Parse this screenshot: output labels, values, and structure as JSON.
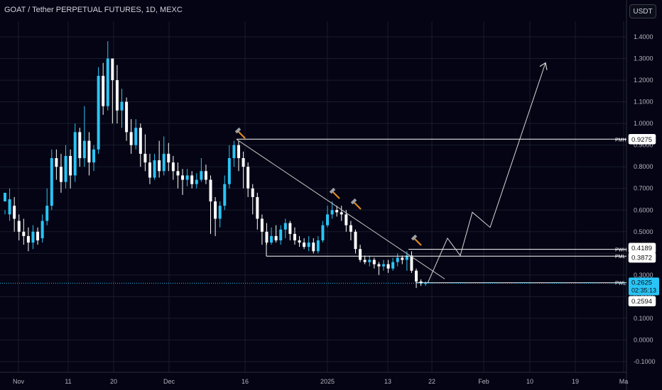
{
  "header": {
    "title": "GOAT / Tether PERPETUAL FUTURES, 1D, MEXC",
    "currency": "USDT"
  },
  "chart_data": {
    "type": "candlestick",
    "title": "GOAT / Tether PERPETUAL FUTURES, 1D, MEXC",
    "y_ticks": [
      "1.4000",
      "1.3000",
      "1.2000",
      "1.1000",
      "1.0000",
      "0.9000",
      "0.8000",
      "0.7000",
      "0.6000",
      "0.5000",
      "0.4000",
      "0.3000",
      "0.2000",
      "0.1000",
      "0.0000",
      "-0.1000"
    ],
    "ylim": [
      -0.13,
      1.45
    ],
    "x_ticks": [
      "Nov",
      "11",
      "20",
      "Dec",
      "16",
      "2025",
      "13",
      "22",
      "Feb",
      "10",
      "19",
      "Ma"
    ],
    "candles": [
      [
        0.64,
        0.68,
        0.6,
        0.58
      ],
      [
        0.58,
        0.65,
        0.7,
        0.55
      ],
      [
        0.62,
        0.56,
        0.66,
        0.5
      ],
      [
        0.55,
        0.5,
        0.58,
        0.46
      ],
      [
        0.5,
        0.48,
        0.56,
        0.44
      ],
      [
        0.48,
        0.45,
        0.52,
        0.41
      ],
      [
        0.45,
        0.5,
        0.53,
        0.42
      ],
      [
        0.5,
        0.46,
        0.52,
        0.44
      ],
      [
        0.47,
        0.55,
        0.58,
        0.45
      ],
      [
        0.55,
        0.62,
        0.7,
        0.53
      ],
      [
        0.62,
        0.84,
        0.88,
        0.6
      ],
      [
        0.84,
        0.8,
        0.88,
        0.74
      ],
      [
        0.8,
        0.73,
        0.86,
        0.68
      ],
      [
        0.73,
        0.85,
        0.9,
        0.7
      ],
      [
        0.85,
        0.76,
        0.88,
        0.7
      ],
      [
        0.76,
        0.96,
        1.0,
        0.73
      ],
      [
        0.96,
        0.84,
        0.98,
        0.8
      ],
      [
        0.84,
        0.92,
        1.08,
        0.8
      ],
      [
        0.92,
        0.82,
        0.96,
        0.76
      ],
      [
        0.82,
        0.88,
        0.9,
        0.78
      ],
      [
        0.88,
        1.22,
        1.26,
        0.86
      ],
      [
        1.22,
        1.08,
        1.28,
        1.04
      ],
      [
        1.08,
        1.3,
        1.38,
        1.06
      ],
      [
        1.3,
        1.2,
        1.25,
        1.0
      ],
      [
        1.2,
        1.06,
        1.27,
        1.0
      ],
      [
        1.06,
        1.1,
        1.16,
        0.98
      ],
      [
        1.1,
        0.96,
        1.12,
        0.92
      ],
      [
        0.96,
        0.9,
        1.02,
        0.86
      ],
      [
        0.9,
        0.98,
        1.02,
        0.88
      ],
      [
        0.98,
        0.86,
        1.0,
        0.8
      ],
      [
        0.86,
        0.82,
        0.95,
        0.78
      ],
      [
        0.82,
        0.75,
        0.86,
        0.72
      ],
      [
        0.75,
        0.83,
        0.86,
        0.74
      ],
      [
        0.83,
        0.78,
        0.92,
        0.75
      ],
      [
        0.78,
        0.86,
        0.94,
        0.76
      ],
      [
        0.86,
        0.82,
        0.91,
        0.78
      ],
      [
        0.82,
        0.78,
        0.85,
        0.74
      ],
      [
        0.78,
        0.76,
        0.82,
        0.7
      ],
      [
        0.76,
        0.74,
        0.79,
        0.67
      ],
      [
        0.74,
        0.76,
        0.79,
        0.71
      ],
      [
        0.76,
        0.72,
        0.78,
        0.7
      ],
      [
        0.72,
        0.74,
        0.77,
        0.7
      ],
      [
        0.74,
        0.78,
        0.84,
        0.73
      ],
      [
        0.78,
        0.74,
        0.81,
        0.72
      ],
      [
        0.74,
        0.64,
        0.76,
        0.49
      ],
      [
        0.64,
        0.56,
        0.66,
        0.48
      ],
      [
        0.56,
        0.62,
        0.64,
        0.52
      ],
      [
        0.62,
        0.72,
        0.76,
        0.6
      ],
      [
        0.72,
        0.84,
        0.9,
        0.7
      ],
      [
        0.84,
        0.9,
        0.92,
        0.8
      ],
      [
        0.9,
        0.84,
        0.92,
        0.78
      ],
      [
        0.84,
        0.8,
        0.87,
        0.7
      ],
      [
        0.8,
        0.7,
        0.82,
        0.66
      ],
      [
        0.7,
        0.66,
        0.72,
        0.58
      ],
      [
        0.66,
        0.56,
        0.68,
        0.51
      ],
      [
        0.56,
        0.5,
        0.58,
        0.44
      ],
      [
        0.5,
        0.45,
        0.54,
        0.44
      ],
      [
        0.45,
        0.48,
        0.52,
        0.44
      ],
      [
        0.48,
        0.46,
        0.53,
        0.45
      ],
      [
        0.46,
        0.51,
        0.53,
        0.44
      ],
      [
        0.51,
        0.54,
        0.56,
        0.47
      ],
      [
        0.54,
        0.49,
        0.55,
        0.46
      ],
      [
        0.49,
        0.46,
        0.52,
        0.44
      ],
      [
        0.46,
        0.45,
        0.48,
        0.43
      ],
      [
        0.45,
        0.43,
        0.47,
        0.42
      ],
      [
        0.43,
        0.45,
        0.48,
        0.41
      ],
      [
        0.45,
        0.41,
        0.47,
        0.4
      ],
      [
        0.41,
        0.46,
        0.48,
        0.4
      ],
      [
        0.46,
        0.53,
        0.55,
        0.45
      ],
      [
        0.53,
        0.58,
        0.62,
        0.52
      ],
      [
        0.58,
        0.6,
        0.64,
        0.56
      ],
      [
        0.6,
        0.59,
        0.62,
        0.57
      ],
      [
        0.59,
        0.58,
        0.62,
        0.55
      ],
      [
        0.58,
        0.53,
        0.6,
        0.5
      ],
      [
        0.53,
        0.5,
        0.55,
        0.46
      ],
      [
        0.5,
        0.42,
        0.51,
        0.4
      ],
      [
        0.42,
        0.37,
        0.44,
        0.36
      ],
      [
        0.37,
        0.36,
        0.39,
        0.35
      ],
      [
        0.36,
        0.37,
        0.39,
        0.34
      ],
      [
        0.37,
        0.35,
        0.38,
        0.33
      ],
      [
        0.35,
        0.34,
        0.36,
        0.3
      ],
      [
        0.34,
        0.35,
        0.37,
        0.32
      ],
      [
        0.35,
        0.33,
        0.37,
        0.31
      ],
      [
        0.33,
        0.36,
        0.38,
        0.32
      ],
      [
        0.36,
        0.38,
        0.4,
        0.34
      ],
      [
        0.38,
        0.37,
        0.39,
        0.35
      ],
      [
        0.37,
        0.39,
        0.41,
        0.32
      ],
      [
        0.39,
        0.32,
        0.41,
        0.31
      ],
      [
        0.32,
        0.27,
        0.33,
        0.24
      ],
      [
        0.27,
        0.262,
        0.28,
        0.25
      ],
      [
        0.262,
        0.2625,
        0.27,
        0.25
      ]
    ],
    "levels": [
      {
        "name": "PWH",
        "price": 0.4189,
        "label": "0.4189"
      },
      {
        "name": "PML",
        "price": 0.3872,
        "label": "0.3872"
      },
      {
        "name": "PWL",
        "price": 0.2594,
        "label": "0.2594"
      },
      {
        "name": "PMH",
        "price": 0.9275,
        "label": "0.9275"
      }
    ],
    "current_price": {
      "label": "0.2625",
      "countdown": "02:35:13",
      "price": 0.2625
    },
    "colors": {
      "up": "#29c5f6",
      "down": "#ffffff",
      "grid": "#1a1d2a",
      "bg": "#040414",
      "current": "#29c5f6",
      "axis_text": "#b2b5be"
    }
  }
}
